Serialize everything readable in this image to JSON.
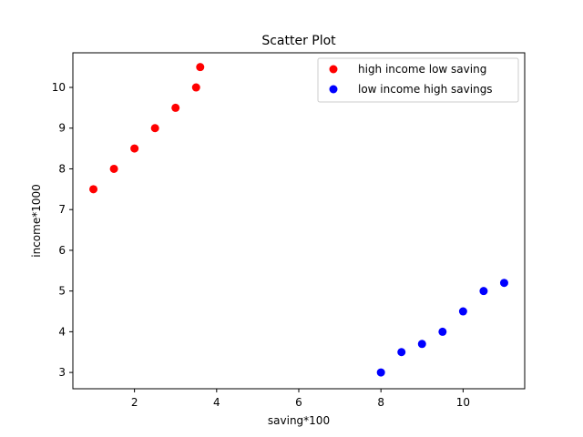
{
  "chart_data": {
    "type": "scatter",
    "title": "Scatter Plot",
    "xlabel": "saving*100",
    "ylabel": "income*1000",
    "xlim": [
      0.5,
      11.5
    ],
    "ylim": [
      2.6,
      10.85
    ],
    "xticks": [
      2,
      4,
      6,
      8,
      10
    ],
    "yticks": [
      3,
      4,
      5,
      6,
      7,
      8,
      9,
      10
    ],
    "grid": false,
    "legend_position": "top-right",
    "series": [
      {
        "name": "high income low saving",
        "color": "#ff0000",
        "x": [
          1.0,
          1.5,
          2.0,
          2.5,
          3.0,
          3.5,
          3.6
        ],
        "y": [
          7.5,
          8.0,
          8.5,
          9.0,
          9.5,
          10.0,
          10.5
        ]
      },
      {
        "name": "low income high savings",
        "color": "#0000ff",
        "x": [
          8.0,
          8.5,
          9.0,
          9.5,
          10.0,
          10.5,
          11.0
        ],
        "y": [
          3.0,
          3.5,
          3.7,
          4.0,
          4.5,
          5.0,
          5.2
        ]
      }
    ]
  }
}
